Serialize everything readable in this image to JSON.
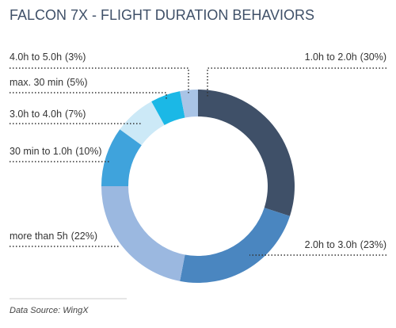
{
  "chart_data": {
    "type": "donut",
    "title": "FALCON 7X  - FLIGHT DURATION BEHAVIORS",
    "categories": [
      "1.0h to 2.0h",
      "2.0h to 3.0h",
      "more than 5h",
      "30 min to 1.0h",
      "3.0h to 4.0h",
      "max. 30 min",
      "4.0h to 5.0h"
    ],
    "values": [
      30,
      23,
      22,
      10,
      7,
      5,
      3
    ],
    "value_labels": [
      "(30%)",
      "(23%)",
      "(22%)",
      "(10%)",
      "(7%)",
      "(5%)",
      "(3%)"
    ],
    "colors": [
      "#3f5068",
      "#4a86c0",
      "#9bb8e0",
      "#3fa3dc",
      "#cce9f7",
      "#1bb8e6",
      "#a9c4e6"
    ],
    "source": "Data Source: WingX"
  }
}
